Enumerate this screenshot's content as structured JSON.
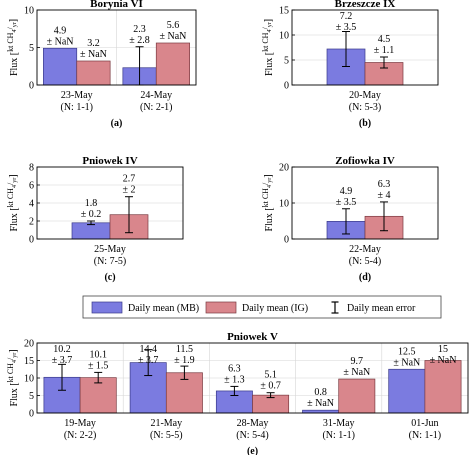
{
  "legend": {
    "mb": "Daily mean (MB)",
    "ig": "Daily mean (IG)",
    "err": "Daily mean error"
  },
  "colors": {
    "mb": "#7b7be0",
    "ig": "#d9868c",
    "mb_stroke": "#3a3a8a",
    "ig_stroke": "#7a3a40"
  },
  "ylabel": "Flux [kt CH4/yr]",
  "chart_data": [
    {
      "id": "a",
      "type": "bar",
      "title": "Borynia VI",
      "panel_label": "(a)",
      "ylim": [
        0,
        10
      ],
      "yticks": [
        0,
        5,
        10
      ],
      "categories": [
        "23-May",
        "24-May"
      ],
      "counts": [
        "(N: 1-1)",
        "(N: 2-1)"
      ],
      "series": [
        {
          "name": "Daily mean (MB)",
          "values": [
            4.9,
            2.3
          ],
          "errors": [
            null,
            2.8
          ],
          "error_text": [
            "± NaN",
            "± 2.8"
          ]
        },
        {
          "name": "Daily mean (IG)",
          "values": [
            3.2,
            5.6
          ],
          "errors": [
            null,
            null
          ],
          "error_text": [
            "± NaN",
            "± NaN"
          ]
        }
      ]
    },
    {
      "id": "b",
      "type": "bar",
      "title": "Brzeszcze IX",
      "panel_label": "(b)",
      "ylim": [
        0,
        15
      ],
      "yticks": [
        0,
        5,
        10,
        15
      ],
      "categories": [
        "20-May"
      ],
      "counts": [
        "(N: 5-3)"
      ],
      "series": [
        {
          "name": "Daily mean (MB)",
          "values": [
            7.2
          ],
          "errors": [
            3.5
          ],
          "error_text": [
            "± 3.5"
          ]
        },
        {
          "name": "Daily mean (IG)",
          "values": [
            4.5
          ],
          "errors": [
            1.1
          ],
          "error_text": [
            "± 1.1"
          ]
        }
      ]
    },
    {
      "id": "c",
      "type": "bar",
      "title": "Pniowek IV",
      "panel_label": "(c)",
      "ylim": [
        0,
        8
      ],
      "yticks": [
        0,
        2,
        4,
        6,
        8
      ],
      "categories": [
        "25-May"
      ],
      "counts": [
        "(N: 7-5)"
      ],
      "series": [
        {
          "name": "Daily mean (MB)",
          "values": [
            1.8
          ],
          "errors": [
            0.2
          ],
          "error_text": [
            "± 0.2"
          ]
        },
        {
          "name": "Daily mean (IG)",
          "values": [
            2.7
          ],
          "errors": [
            2
          ],
          "error_text": [
            "± 2"
          ]
        }
      ]
    },
    {
      "id": "d",
      "type": "bar",
      "title": "Zofiowka IV",
      "panel_label": "(d)",
      "ylim": [
        0,
        20
      ],
      "yticks": [
        0,
        10,
        20
      ],
      "categories": [
        "22-May"
      ],
      "counts": [
        "(N: 5-4)"
      ],
      "series": [
        {
          "name": "Daily mean (MB)",
          "values": [
            4.9
          ],
          "errors": [
            3.5
          ],
          "error_text": [
            "± 3.5"
          ]
        },
        {
          "name": "Daily mean (IG)",
          "values": [
            6.3
          ],
          "errors": [
            4
          ],
          "error_text": [
            "± 4"
          ]
        }
      ]
    },
    {
      "id": "e",
      "type": "bar",
      "title": "Pniowek V",
      "panel_label": "(e)",
      "ylim": [
        0,
        20
      ],
      "yticks": [
        0,
        5,
        10,
        15,
        20
      ],
      "categories": [
        "19-May",
        "21-May",
        "28-May",
        "31-May",
        "01-Jun"
      ],
      "counts": [
        "(N: 2-2)",
        "(N: 5-5)",
        "(N: 5-4)",
        "(N: 1-1)",
        "(N: 1-1)"
      ],
      "series": [
        {
          "name": "Daily mean (MB)",
          "values": [
            10.2,
            14.4,
            6.3,
            0.8,
            12.5
          ],
          "errors": [
            3.7,
            3.7,
            1.3,
            null,
            null
          ],
          "error_text": [
            "± 3.7",
            "± 3.7",
            "± 1.3",
            "± NaN",
            "± NaN"
          ]
        },
        {
          "name": "Daily mean (IG)",
          "values": [
            10.1,
            11.5,
            5.1,
            9.7,
            15
          ],
          "errors": [
            1.5,
            1.9,
            0.7,
            null,
            null
          ],
          "error_text": [
            "± 1.5",
            "± 1.9",
            "± 0.7",
            "± NaN",
            "± NaN"
          ]
        }
      ]
    }
  ]
}
